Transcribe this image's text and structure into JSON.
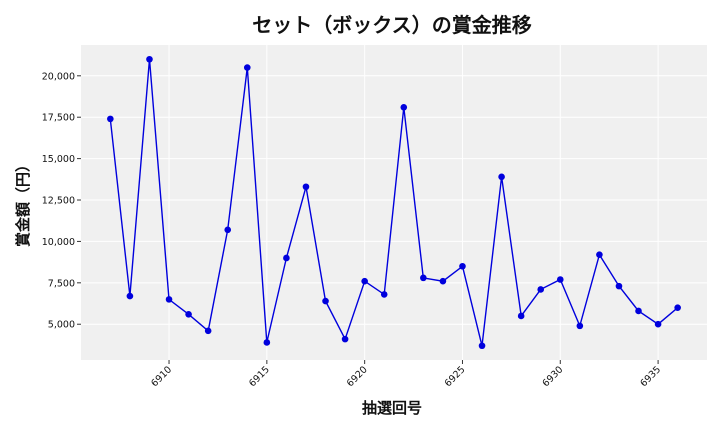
{
  "chart_data": {
    "type": "line",
    "title": "セット（ボックス）の賞金推移",
    "xlabel": "抽選回号",
    "ylabel": "賞金額（円）",
    "x": [
      6907,
      6908,
      6909,
      6910,
      6911,
      6912,
      6913,
      6914,
      6915,
      6916,
      6917,
      6918,
      6919,
      6920,
      6921,
      6922,
      6923,
      6924,
      6925,
      6926,
      6927,
      6928,
      6929,
      6930,
      6931,
      6932,
      6933,
      6934,
      6935,
      6936
    ],
    "series": [
      {
        "values": [
          17400,
          6700,
          21000,
          6500,
          5600,
          4600,
          10700,
          20500,
          3900,
          9000,
          13300,
          6400,
          4100,
          7600,
          6800,
          18100,
          7800,
          7600,
          8500,
          3700,
          13900,
          5500,
          7100,
          7700,
          4900,
          9200,
          7300,
          5800,
          5000,
          6000
        ],
        "color": "#0000dd"
      }
    ],
    "xticks": [
      6910,
      6915,
      6920,
      6925,
      6930,
      6935
    ],
    "xtick_labels": [
      "6910",
      "6915",
      "6920",
      "6925",
      "6930",
      "6935"
    ],
    "yticks": [
      5000,
      7500,
      10000,
      12500,
      15000,
      17500,
      20000
    ],
    "ytick_labels": [
      "5,000",
      "7,500",
      "10,000",
      "12,500",
      "15,000",
      "17,500",
      "20,000"
    ],
    "xlim": [
      6905.5,
      6937.5
    ],
    "ylim": [
      2840,
      21860
    ],
    "grid": true,
    "plot_background": "#f0f0f0",
    "grid_color": "#ffffff"
  }
}
